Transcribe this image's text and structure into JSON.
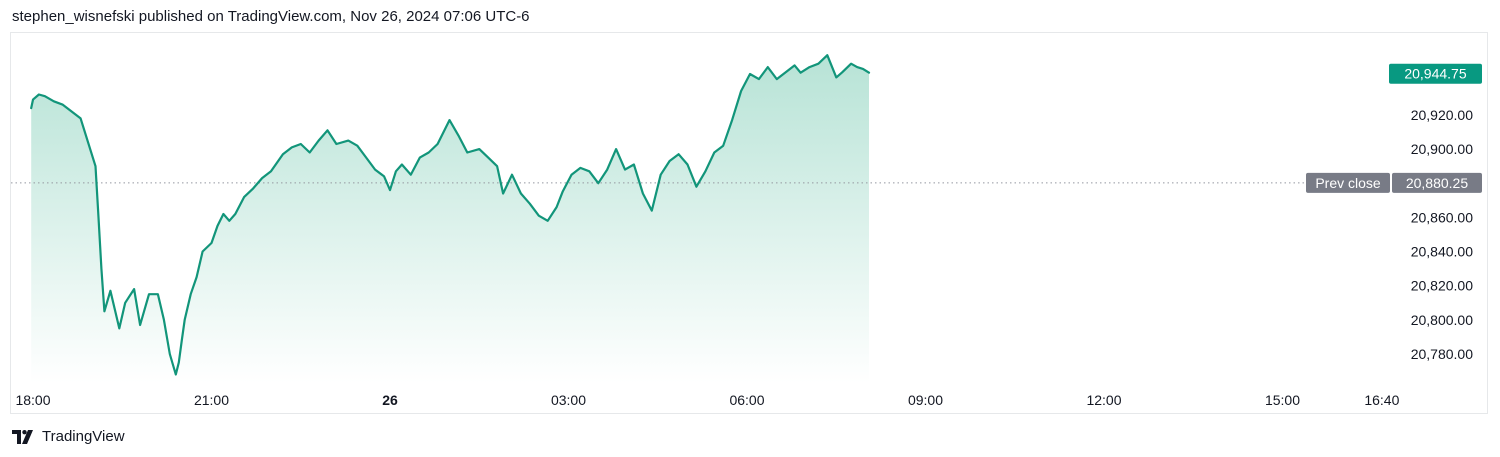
{
  "header": {
    "attribution": "stephen_wisnefski published on TradingView.com, Nov 26, 2024 07:06 UTC-6"
  },
  "footer": {
    "brand": "TradingView",
    "logo_icon": "tradingview-logo-icon"
  },
  "colors": {
    "line": "#12957a",
    "fill_top": "#b7e3d6",
    "badge_last": "#089981",
    "badge_prev": "#787b86",
    "prev_line": "#9598a1"
  },
  "chart_data": {
    "type": "area",
    "title": "",
    "xlabel": "",
    "ylabel": "",
    "x_ticks": [
      "18:00",
      "21:00",
      "26",
      "03:00",
      "06:00",
      "09:00",
      "12:00",
      "15:00",
      "16:40"
    ],
    "x_ticks_bold": [
      "26"
    ],
    "y_ticks": [
      "20,920.00",
      "20,900.00",
      "20,880.00",
      "20,860.00",
      "20,840.00",
      "20,820.00",
      "20,800.00",
      "20,780.00"
    ],
    "y_tick_values": [
      20920,
      20900,
      20880,
      20860,
      20840,
      20820,
      20800,
      20780
    ],
    "ylim": [
      20763,
      20968
    ],
    "x_hours": [
      -0.03,
      0,
      0.1,
      0.2,
      0.35,
      0.5,
      0.8,
      1.05,
      1.1,
      1.15,
      1.2,
      1.3,
      1.45,
      1.55,
      1.7,
      1.8,
      1.95,
      2.1,
      2.2,
      2.3,
      2.4,
      2.45,
      2.5,
      2.55,
      2.65,
      2.75,
      2.85,
      3.0,
      3.1,
      3.2,
      3.3,
      3.4,
      3.55,
      3.7,
      3.85,
      4.0,
      4.2,
      4.35,
      4.5,
      4.65,
      4.8,
      4.95,
      5.1,
      5.3,
      5.45,
      5.6,
      5.75,
      5.9,
      6.0,
      6.1,
      6.2,
      6.35,
      6.5,
      6.65,
      6.8,
      7.0,
      7.15,
      7.3,
      7.5,
      7.65,
      7.8,
      7.9,
      8.05,
      8.2,
      8.35,
      8.5,
      8.65,
      8.8,
      8.9,
      9.05,
      9.2,
      9.35,
      9.5,
      9.65,
      9.8,
      9.95,
      10.1,
      10.25,
      10.4,
      10.55,
      10.7,
      10.85,
      11.0,
      11.15,
      11.3,
      11.45,
      11.6,
      11.75,
      11.9,
      12.05,
      12.2,
      12.35,
      12.5,
      12.65,
      12.8,
      12.9,
      13.05,
      13.2,
      13.35,
      13.5,
      13.6,
      13.75,
      13.85,
      13.95,
      14.05
    ],
    "series": [
      {
        "values": [
          20924,
          20929,
          20932,
          20931,
          20928,
          20926,
          20918,
          20890,
          20860,
          20830,
          20805,
          20817,
          20795,
          20810,
          20818,
          20797,
          20815,
          20815,
          20800,
          20780,
          20768,
          20775,
          20788,
          20800,
          20815,
          20825,
          20840,
          20845,
          20855,
          20862,
          20858,
          20862,
          20872,
          20877,
          20883,
          20887,
          20897,
          20901,
          20903,
          20898,
          20905,
          20911,
          20903,
          20905,
          20902,
          20895,
          20888,
          20884,
          20876,
          20887,
          20891,
          20885,
          20895,
          20898,
          20903,
          20917,
          20908,
          20898,
          20900,
          20895,
          20890,
          20874,
          20885,
          20874,
          20868,
          20861,
          20858,
          20866,
          20875,
          20885,
          20889,
          20887,
          20880,
          20888,
          20900,
          20888,
          20891,
          20874,
          20864,
          20885,
          20893,
          20897,
          20891,
          20878,
          20887,
          20898,
          20902,
          20917,
          20934,
          20944,
          20941,
          20948,
          20941,
          20945,
          20949,
          20944.75,
          20948,
          20950,
          20955,
          20942,
          20945,
          20950,
          20948,
          20947,
          20944.75
        ]
      }
    ],
    "last_price": 20944.75,
    "last_price_label": "20,944.75",
    "prev_close": 20880.25,
    "prev_close_label": "20,880.25",
    "prev_close_name": "Prev close",
    "grid": false
  }
}
